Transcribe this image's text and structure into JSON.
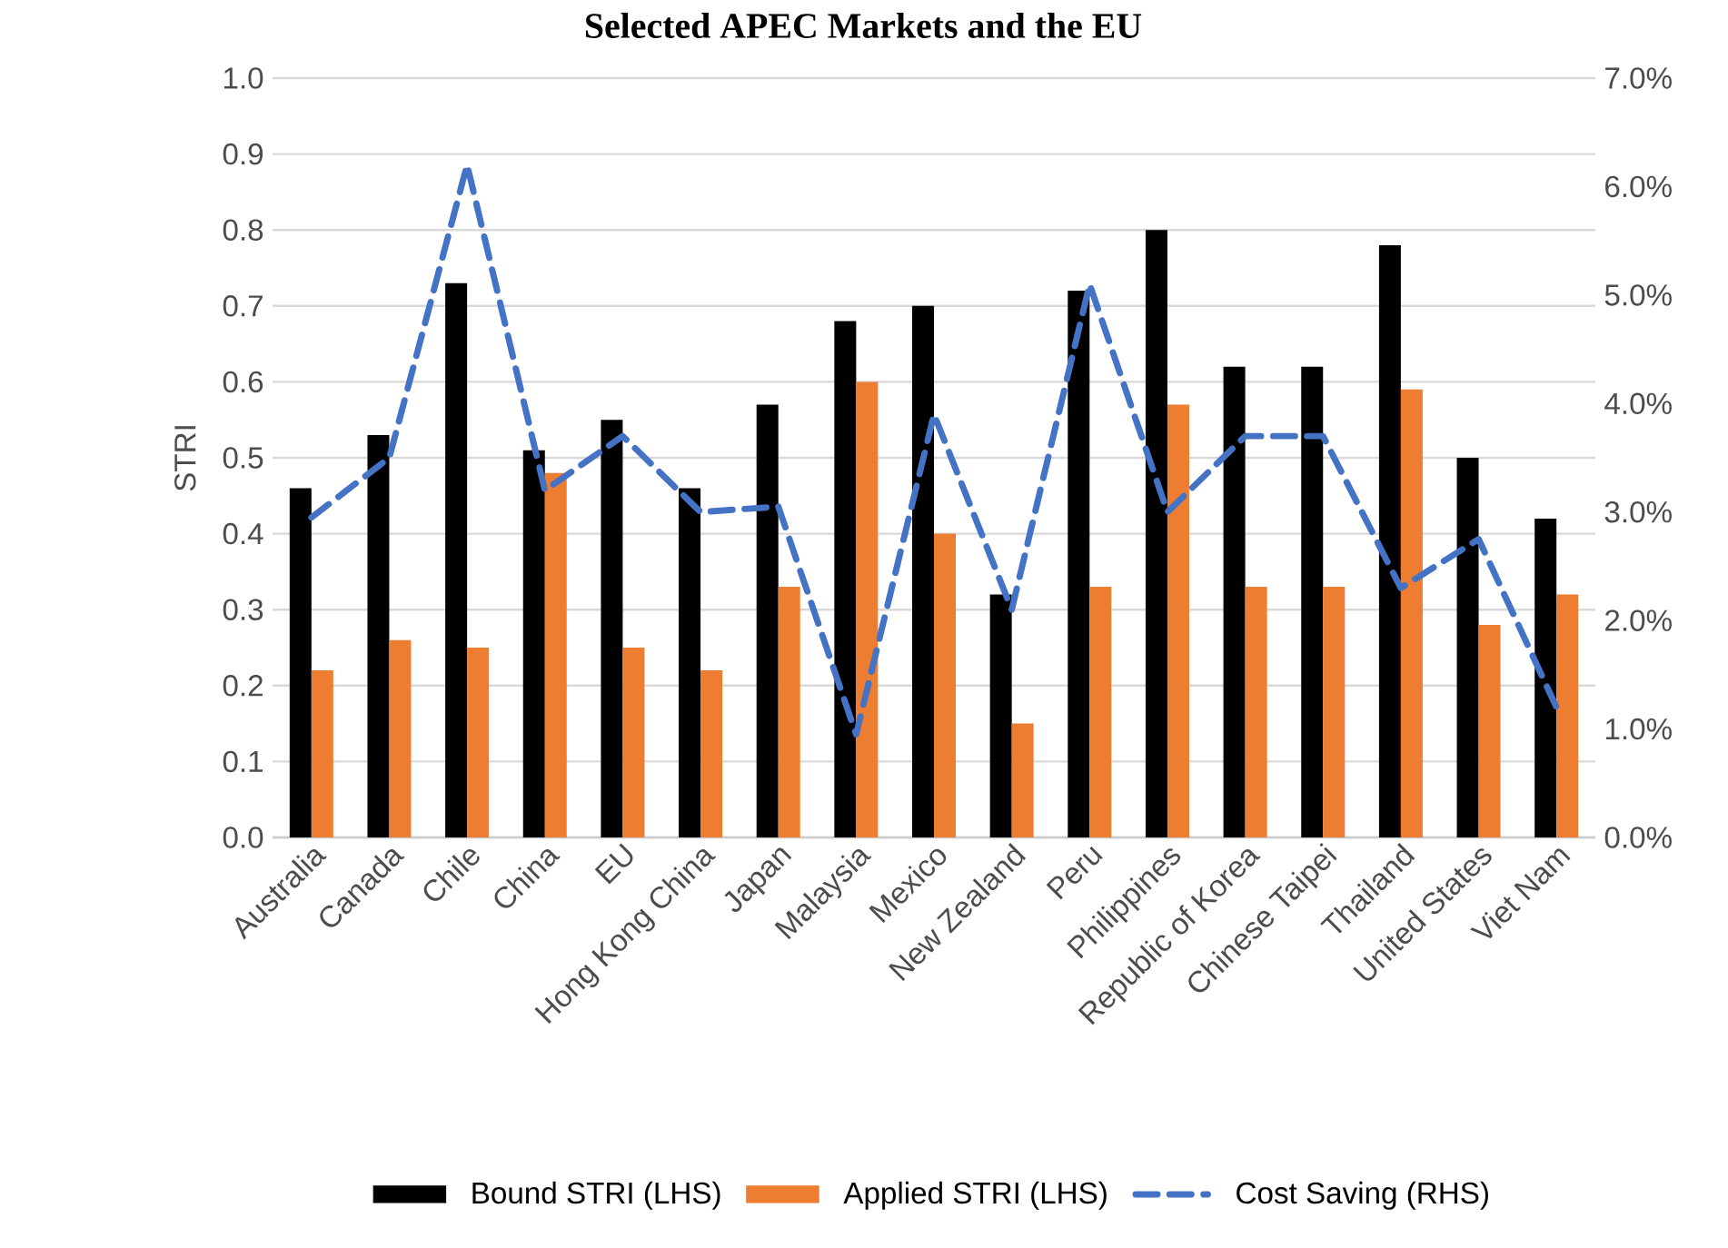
{
  "chart_data": {
    "type": "bar",
    "title": "Selected APEC Markets and the EU",
    "ylabel": "STRI",
    "categories": [
      "Australia",
      "Canada",
      "Chile",
      "China",
      "EU",
      "Hong Kong China",
      "Japan",
      "Malaysia",
      "Mexico",
      "New Zealand",
      "Peru",
      "Philippines",
      "Republic of Korea",
      "Chinese Taipei",
      "Thailand",
      "United States",
      "Viet Nam"
    ],
    "series": [
      {
        "name": "Bound STRI (LHS)",
        "color": "#000000",
        "values": [
          0.46,
          0.53,
          0.73,
          0.51,
          0.55,
          0.46,
          0.57,
          0.68,
          0.7,
          0.32,
          0.72,
          0.8,
          0.62,
          0.62,
          0.78,
          0.5,
          0.42
        ]
      },
      {
        "name": "Applied STRI (LHS)",
        "color": "#ed7d31",
        "values": [
          0.22,
          0.26,
          0.25,
          0.48,
          0.25,
          0.22,
          0.33,
          0.6,
          0.4,
          0.15,
          0.33,
          0.57,
          0.33,
          0.33,
          0.59,
          0.28,
          0.32
        ]
      },
      {
        "name": "Cost Saving (RHS)",
        "type": "line",
        "axis": "y2",
        "color": "#4472c4",
        "line_style": "dashed",
        "values": [
          2.95,
          3.5,
          6.2,
          3.2,
          3.7,
          3.0,
          3.05,
          0.95,
          3.9,
          2.1,
          5.1,
          3.0,
          3.7,
          3.7,
          2.3,
          2.75,
          1.2
        ]
      }
    ],
    "ylim": [
      0,
      1
    ],
    "yticks": [
      {
        "value": 0,
        "label": "0.0"
      },
      0.1,
      0.2,
      0.3,
      0.4,
      0.5,
      0.6,
      0.7,
      0.8,
      0.9,
      {
        "value": 1,
        "label": "1.0"
      }
    ],
    "y2lim": [
      0,
      7
    ],
    "y2ticks": [
      {
        "value": 0,
        "label": "0.0%"
      },
      {
        "value": 1,
        "label": "1.0%"
      },
      {
        "value": 2,
        "label": "2.0%"
      },
      {
        "value": 3,
        "label": "3.0%"
      },
      {
        "value": 4,
        "label": "4.0%"
      },
      {
        "value": 5,
        "label": "5.0%"
      },
      {
        "value": 6,
        "label": "6.0%"
      },
      {
        "value": 7,
        "label": "7.0%"
      }
    ],
    "grid": "y",
    "legend": "bottom"
  }
}
